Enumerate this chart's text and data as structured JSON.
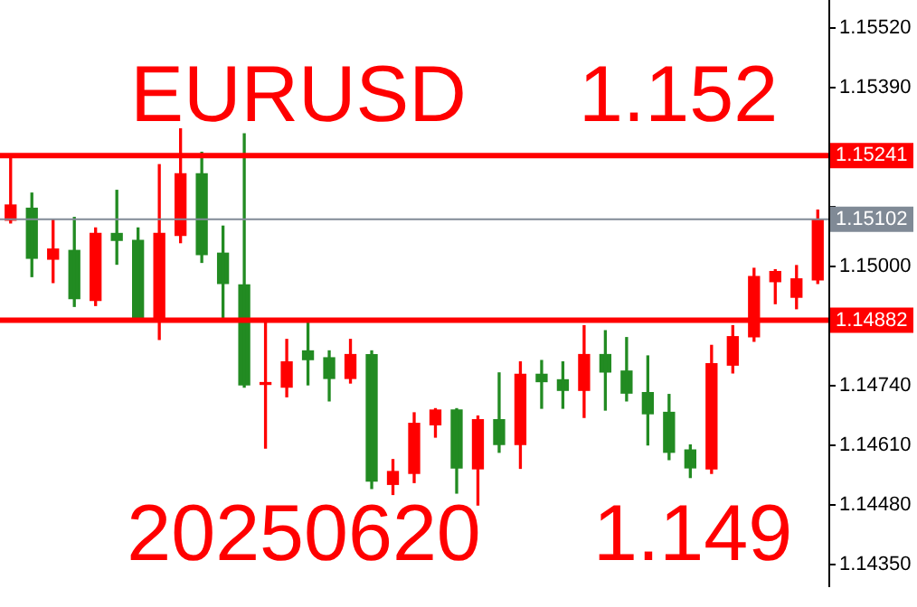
{
  "chart_data": {
    "type": "candlestick",
    "categories": [
      null,
      null,
      null,
      null,
      null,
      null,
      null,
      null,
      null,
      null,
      null,
      null,
      null,
      null,
      null,
      null,
      null,
      null,
      null,
      null,
      null,
      null,
      null,
      null,
      null,
      null,
      null,
      null,
      null,
      null,
      null,
      null,
      null,
      null,
      null,
      null,
      null,
      null,
      null
    ],
    "ohlc": [
      [
        1.151,
        1.15237,
        1.15094,
        1.15133
      ],
      [
        1.15126,
        1.15159,
        1.14977,
        1.15017
      ],
      [
        1.15015,
        1.151,
        1.14964,
        1.15037
      ],
      [
        1.15034,
        1.15106,
        1.14912,
        1.14929
      ],
      [
        1.14925,
        1.15083,
        1.14914,
        1.15071
      ],
      [
        1.15071,
        1.15165,
        1.15004,
        1.15056
      ],
      [
        1.15056,
        1.15083,
        1.1488,
        1.14886
      ],
      [
        1.14883,
        1.15221,
        1.1484,
        1.15071
      ],
      [
        1.15067,
        1.15299,
        1.15051,
        1.15201
      ],
      [
        1.15201,
        1.15248,
        1.15008,
        1.15025
      ],
      [
        1.15028,
        1.15087,
        1.14883,
        1.14962
      ],
      [
        1.14959,
        1.15288,
        1.14736,
        1.14741
      ],
      [
        1.14742,
        1.1488,
        1.14603,
        1.14744
      ],
      [
        1.14736,
        1.1484,
        1.14715,
        1.14791
      ],
      [
        1.14815,
        1.14877,
        1.14741,
        1.14796
      ],
      [
        1.148,
        1.14815,
        1.14706,
        1.14755
      ],
      [
        1.14755,
        1.1484,
        1.14745,
        1.14807
      ],
      [
        1.14807,
        1.14815,
        1.14515,
        1.14531
      ],
      [
        1.14524,
        1.14578,
        1.14502,
        1.14552
      ],
      [
        1.14548,
        1.1468,
        1.14528,
        1.14657
      ],
      [
        1.14654,
        1.14689,
        1.14627,
        1.14686
      ],
      [
        1.14686,
        1.14689,
        1.14505,
        1.1456
      ],
      [
        1.14558,
        1.14673,
        1.14479,
        1.14665
      ],
      [
        1.14665,
        1.14767,
        1.14594,
        1.14611
      ],
      [
        1.14611,
        1.14791,
        1.14559,
        1.14764
      ],
      [
        1.14764,
        1.14794,
        1.1469,
        1.14748
      ],
      [
        1.14752,
        1.14791,
        1.1469,
        1.14729
      ],
      [
        1.14729,
        1.1487,
        1.1467,
        1.14807
      ],
      [
        1.14807,
        1.14859,
        1.14686,
        1.14769
      ],
      [
        1.14771,
        1.14844,
        1.14706,
        1.14723
      ],
      [
        1.14724,
        1.14804,
        1.1461,
        1.14678
      ],
      [
        1.14681,
        1.1472,
        1.14578,
        1.14594
      ],
      [
        1.14599,
        1.1461,
        1.14539,
        1.1456
      ],
      [
        1.14558,
        1.14827,
        1.14548,
        1.14787
      ],
      [
        1.14784,
        1.1487,
        1.14767,
        1.14846
      ],
      [
        1.14846,
        1.14995,
        1.14836,
        1.14977
      ],
      [
        1.14966,
        1.14992,
        1.14918,
        1.14988
      ],
      [
        1.14932,
        1.15001,
        1.14907,
        1.14972
      ],
      [
        1.1497,
        1.15122,
        1.14962,
        1.15102
      ]
    ],
    "colors": [
      "#ff0000",
      "#228b22",
      "#ff0000",
      "#228b22",
      "#ff0000",
      "#228b22",
      "#228b22",
      "#ff0000",
      "#ff0000",
      "#228b22",
      "#228b22",
      "#228b22",
      "#ff0000",
      "#ff0000",
      "#228b22",
      "#228b22",
      "#ff0000",
      "#228b22",
      "#ff0000",
      "#ff0000",
      "#ff0000",
      "#228b22",
      "#ff0000",
      "#228b22",
      "#ff0000",
      "#228b22",
      "#228b22",
      "#ff0000",
      "#228b22",
      "#228b22",
      "#228b22",
      "#228b22",
      "#228b22",
      "#ff0000",
      "#ff0000",
      "#ff0000",
      "#ff0000",
      "#ff0000",
      "#ff0000"
    ],
    "ylim": [
      1.143,
      1.1558
    ],
    "yticks": [
      {
        "value": 1.1552,
        "label": "1.15520"
      },
      {
        "value": 1.1539,
        "label": "1.15390"
      },
      {
        "value": 1.1526,
        "label": null
      },
      {
        "value": 1.1513,
        "label": null
      },
      {
        "value": 1.15,
        "label": "1.15000"
      },
      {
        "value": 1.1487,
        "label": null
      },
      {
        "value": 1.1474,
        "label": "1.14740"
      },
      {
        "value": 1.1461,
        "label": "1.14610"
      },
      {
        "value": 1.1448,
        "label": "1.14480"
      },
      {
        "value": 1.1435,
        "label": "1.14350"
      }
    ],
    "tick_labels": "y",
    "ref_lines": [
      {
        "axis": "y",
        "value": 1.15241,
        "label": "1.15241",
        "color": "#ff0000"
      },
      {
        "axis": "y",
        "value": 1.14882,
        "label": "1.14882",
        "color": "#ff0000"
      },
      {
        "axis": "y",
        "value": 1.15102,
        "label": "1.15102",
        "color": "#808a96"
      }
    ],
    "annotations": [
      "EURUSD",
      "1.152",
      "20250620",
      "1.149"
    ]
  }
}
